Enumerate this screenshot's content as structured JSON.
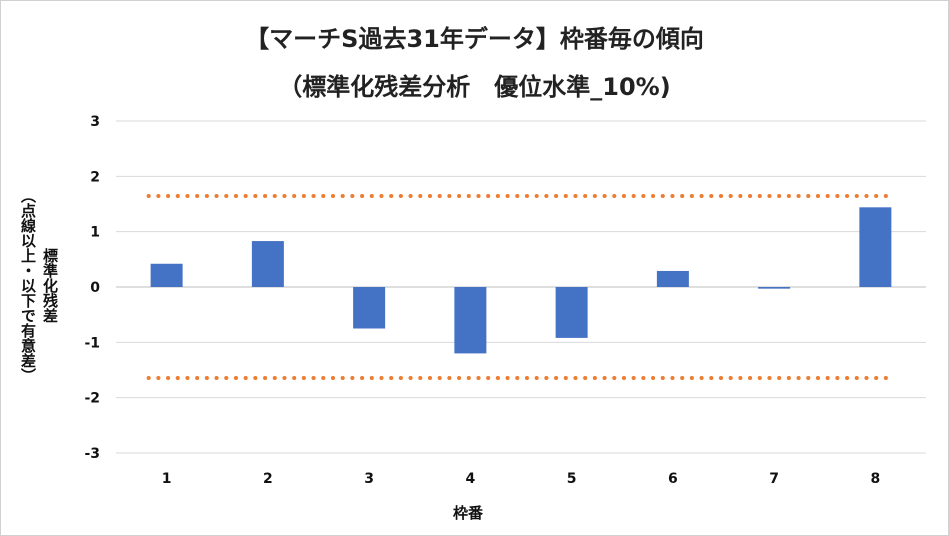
{
  "chart_data": {
    "type": "bar",
    "title_line1": "【マーチS過去31年データ】枠番毎の傾向",
    "title_line2": "（標準化残差分析　優位水準_10%)",
    "xlabel": "枠番",
    "ylabel_line1": "標準化残差",
    "ylabel_line2": "（点線以上・以下で有意差）",
    "categories": [
      "1",
      "2",
      "3",
      "4",
      "5",
      "6",
      "7",
      "8"
    ],
    "series": [
      {
        "values": [
          0.42,
          0.83,
          -0.75,
          -1.2,
          -0.92,
          0.29,
          -0.03,
          1.44
        ],
        "color": "#4472C4"
      }
    ],
    "threshold_lines": [
      {
        "value": 1.645,
        "color": "#ED7D31",
        "style": "dotted"
      },
      {
        "value": -1.645,
        "color": "#ED7D31",
        "style": "dotted"
      }
    ],
    "ylim": [
      -3,
      3
    ],
    "yticks": [
      -3,
      -2,
      -1,
      0,
      1,
      2,
      3
    ],
    "grid": true,
    "legend": "none"
  }
}
